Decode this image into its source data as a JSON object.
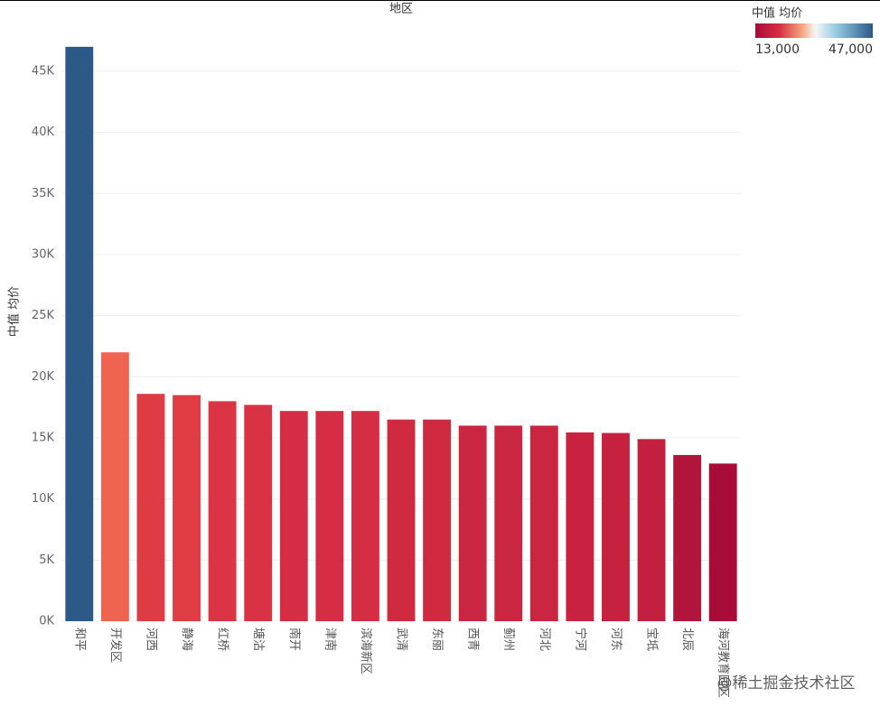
{
  "chart_data": {
    "type": "bar",
    "x_title": "地区",
    "y_title": "中值 均价",
    "categories": [
      "和平",
      "开发区",
      "河西",
      "静海",
      "红桥",
      "塘沽",
      "南开",
      "津南",
      "滨海新区",
      "武清",
      "东丽",
      "西青",
      "蓟州",
      "河北",
      "宁河",
      "河东",
      "宝坻",
      "北辰",
      "海河教育园区"
    ],
    "values": [
      47000,
      22000,
      18600,
      18500,
      18000,
      17700,
      17200,
      17200,
      17200,
      16500,
      16500,
      16000,
      16000,
      16000,
      15450,
      15400,
      14900,
      13600,
      12900
    ],
    "colors": [
      "#2c5985",
      "#ef6351",
      "#df3b44",
      "#df3c43",
      "#da3445",
      "#d83345",
      "#d52d43",
      "#d52d43",
      "#d52d43",
      "#d02a41",
      "#d02a41",
      "#cb2641",
      "#cb2641",
      "#cb2641",
      "#c82240",
      "#c6213f",
      "#c31f3e",
      "#b1153b",
      "#a80c38"
    ],
    "ylim": [
      0,
      49500
    ],
    "yticks": [
      {
        "value": 0,
        "label": "0K"
      },
      {
        "value": 5000,
        "label": "5K"
      },
      {
        "value": 10000,
        "label": "10K"
      },
      {
        "value": 15000,
        "label": "15K"
      },
      {
        "value": 20000,
        "label": "20K"
      },
      {
        "value": 25000,
        "label": "25K"
      },
      {
        "value": 30000,
        "label": "30K"
      },
      {
        "value": 35000,
        "label": "35K"
      },
      {
        "value": 40000,
        "label": "40K"
      },
      {
        "value": 45000,
        "label": "45K"
      }
    ],
    "grid": true,
    "legend": {
      "title": "中值 均价",
      "min": {
        "value": 13000,
        "label": "13,000"
      },
      "max": {
        "value": 47000,
        "label": "47,000"
      }
    },
    "watermark": "@稀土掘金技术社区"
  }
}
